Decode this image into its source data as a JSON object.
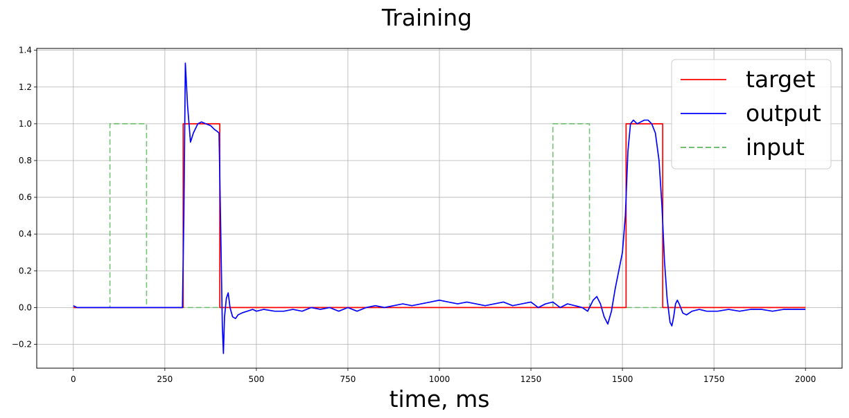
{
  "chart_data": {
    "type": "line",
    "title": "Training",
    "xlabel": "time, ms",
    "ylabel": "",
    "xlim": [
      -100,
      2100
    ],
    "ylim": [
      -0.33,
      1.41
    ],
    "xticks": [
      0,
      250,
      500,
      750,
      1000,
      1250,
      1500,
      1750,
      2000
    ],
    "yticks": [
      -0.2,
      0.0,
      0.2,
      0.4,
      0.6,
      0.8,
      1.0,
      1.2,
      1.4
    ],
    "xtick_labels": [
      "0",
      "250",
      "500",
      "750",
      "1000",
      "1250",
      "1500",
      "1750",
      "2000"
    ],
    "ytick_labels": [
      "−0.2",
      "0.0",
      "0.2",
      "0.4",
      "0.6",
      "0.8",
      "1.0",
      "1.2",
      "1.4"
    ],
    "grid": true,
    "legend_position": "top-right",
    "series": [
      {
        "name": "target",
        "color": "#ff0000",
        "style": "solid",
        "x": [
          0,
          300,
          300,
          400,
          400,
          1510,
          1510,
          1610,
          1610,
          2000
        ],
        "y": [
          0,
          0,
          1,
          1,
          0,
          0,
          1,
          1,
          0,
          0
        ]
      },
      {
        "name": "output",
        "color": "#0000ff",
        "style": "solid",
        "x": [
          0,
          10,
          50,
          100,
          150,
          200,
          250,
          298,
          302,
          306,
          312,
          320,
          328,
          340,
          350,
          362,
          375,
          385,
          392,
          398,
          402,
          407,
          410,
          413,
          418,
          423,
          428,
          435,
          443,
          450,
          460,
          475,
          490,
          500,
          520,
          550,
          575,
          600,
          625,
          650,
          675,
          700,
          725,
          750,
          775,
          800,
          825,
          850,
          875,
          900,
          925,
          950,
          975,
          1000,
          1025,
          1050,
          1075,
          1100,
          1125,
          1150,
          1175,
          1200,
          1225,
          1250,
          1270,
          1290,
          1310,
          1330,
          1350,
          1370,
          1390,
          1405,
          1420,
          1430,
          1440,
          1450,
          1460,
          1470,
          1480,
          1490,
          1500,
          1508,
          1515,
          1522,
          1530,
          1540,
          1550,
          1560,
          1570,
          1580,
          1590,
          1600,
          1608,
          1615,
          1622,
          1630,
          1635,
          1640,
          1645,
          1650,
          1655,
          1665,
          1675,
          1690,
          1710,
          1730,
          1760,
          1790,
          1820,
          1850,
          1880,
          1910,
          1940,
          1970,
          2000
        ],
        "y": [
          0.01,
          0.0,
          0.0,
          0.0,
          0.0,
          0.0,
          0.0,
          0.0,
          0.5,
          1.33,
          1.1,
          0.9,
          0.95,
          1.0,
          1.01,
          1.0,
          0.99,
          0.97,
          0.96,
          0.95,
          0.5,
          -0.1,
          -0.25,
          -0.05,
          0.05,
          0.08,
          0.0,
          -0.05,
          -0.06,
          -0.04,
          -0.03,
          -0.02,
          -0.01,
          -0.02,
          -0.01,
          -0.02,
          -0.02,
          -0.01,
          -0.02,
          0.0,
          -0.01,
          0.0,
          -0.02,
          0.0,
          -0.02,
          0.0,
          0.01,
          0.0,
          0.01,
          0.02,
          0.01,
          0.02,
          0.03,
          0.04,
          0.03,
          0.02,
          0.03,
          0.02,
          0.01,
          0.02,
          0.03,
          0.01,
          0.02,
          0.03,
          0.0,
          0.02,
          0.03,
          0.0,
          0.02,
          0.01,
          0.0,
          -0.02,
          0.04,
          0.06,
          0.02,
          -0.05,
          -0.09,
          -0.02,
          0.1,
          0.2,
          0.3,
          0.5,
          0.85,
          1.0,
          1.02,
          1.0,
          1.01,
          1.02,
          1.02,
          1.0,
          0.95,
          0.8,
          0.55,
          0.25,
          0.05,
          -0.08,
          -0.1,
          -0.05,
          0.02,
          0.04,
          0.02,
          -0.03,
          -0.04,
          -0.02,
          -0.01,
          -0.02,
          -0.02,
          -0.01,
          -0.02,
          -0.01,
          -0.01,
          -0.02,
          -0.01,
          -0.01,
          -0.01
        ]
      },
      {
        "name": "input",
        "color": "#5cb85c",
        "style": "dashed",
        "x": [
          0,
          100,
          100,
          200,
          200,
          1310,
          1310,
          1410,
          1410,
          2000
        ],
        "y": [
          0,
          0,
          1,
          1,
          0,
          0,
          1,
          1,
          0,
          0
        ]
      }
    ]
  }
}
